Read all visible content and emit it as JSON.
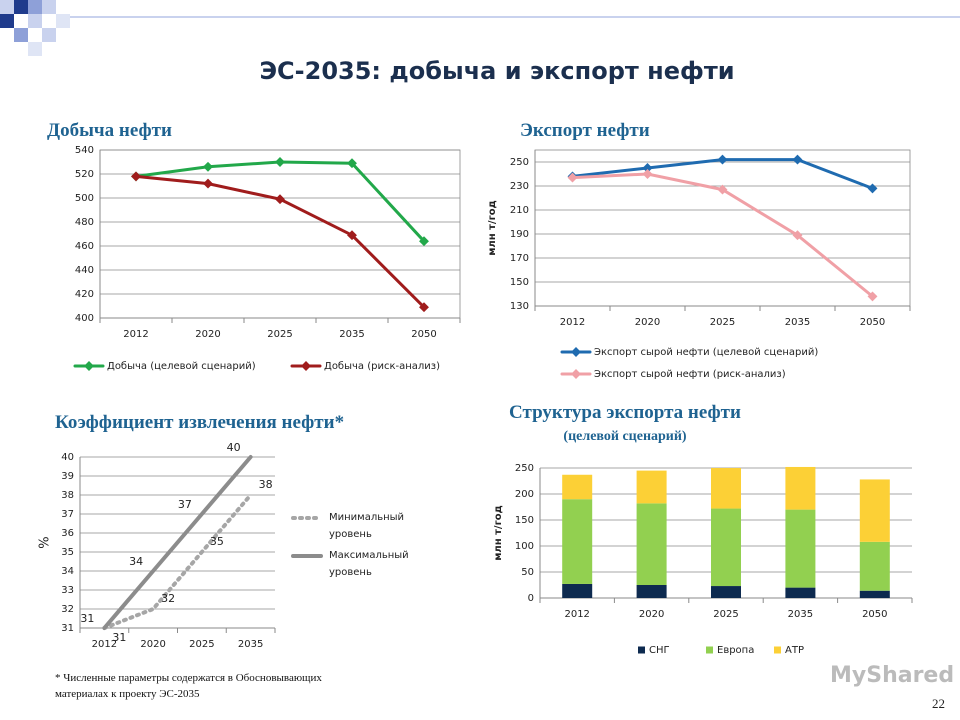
{
  "title": "ЭС-2035: добыча и экспорт нефти",
  "footnote": "* Численные параметры содержатся в Обосновывающих материалах к проекту ЭС-2035",
  "page_number": "22",
  "watermark": "MyShared",
  "chart_data": [
    {
      "type": "line",
      "title": "Добыча нефти",
      "categories": [
        "2012",
        "2020",
        "2025",
        "2035",
        "2050"
      ],
      "series": [
        {
          "name": "Добыча (целевой сценарий)",
          "color": "#22a84a",
          "values": [
            518,
            526,
            530,
            529,
            464
          ]
        },
        {
          "name": "Добыча (риск-анализ)",
          "color": "#a01c1c",
          "values": [
            518,
            512,
            499,
            469,
            409
          ]
        }
      ],
      "ylim": [
        400,
        540
      ],
      "yticks": [
        400,
        420,
        440,
        460,
        480,
        500,
        520,
        540
      ],
      "grid": true,
      "legend": "bottom"
    },
    {
      "type": "line",
      "title": "Экспорт нефти",
      "y_label": "млн т/год",
      "categories": [
        "2012",
        "2020",
        "2025",
        "2035",
        "2050"
      ],
      "series": [
        {
          "name": "Экспорт сырой нефти (целевой сценарий)",
          "color": "#1f6bb0",
          "values": [
            238,
            245,
            252,
            252,
            228
          ]
        },
        {
          "name": "Экспорт сырой нефти (риск-анализ)",
          "color": "#f0a0a6",
          "values": [
            237,
            240,
            227,
            189,
            138
          ]
        }
      ],
      "ylim": [
        130,
        260
      ],
      "yticks": [
        130,
        150,
        170,
        190,
        210,
        230,
        250
      ],
      "grid": true,
      "legend": "bottom"
    },
    {
      "type": "line",
      "title": "Коэффициент извлечения нефти*",
      "y_label": "%",
      "categories": [
        "2012",
        "2020",
        "2025",
        "2035"
      ],
      "series": [
        {
          "name": "Минимальный уровень",
          "color": "#a6a6a6",
          "line_style": "dotted",
          "values": [
            31,
            32,
            35,
            38
          ]
        },
        {
          "name": "Максимальный уровень",
          "color": "#8c8c8c",
          "line_style": "solid",
          "values": [
            31,
            34,
            37,
            40
          ]
        }
      ],
      "ylim": [
        31,
        40
      ],
      "yticks": [
        31,
        32,
        33,
        34,
        35,
        36,
        37,
        38,
        39,
        40
      ],
      "grid": true,
      "legend": "right",
      "data_labels": true
    },
    {
      "type": "bar",
      "stacked": true,
      "title": "Структура экспорта нефти",
      "subtitle": "(целевой сценарий)",
      "y_label": "млн т/год",
      "categories": [
        "2012",
        "2020",
        "2025",
        "2035",
        "2050"
      ],
      "series": [
        {
          "name": "СНГ",
          "color": "#0d2a4f",
          "values": [
            27,
            25,
            23,
            20,
            14
          ]
        },
        {
          "name": "Европа",
          "color": "#92d050",
          "values": [
            163,
            157,
            149,
            150,
            94
          ]
        },
        {
          "name": "АТР",
          "color": "#fcd036",
          "values": [
            47,
            63,
            78,
            82,
            120
          ]
        }
      ],
      "ylim": [
        0,
        250
      ],
      "yticks": [
        0,
        50,
        100,
        150,
        200,
        250
      ],
      "grid": true,
      "legend": "bottom"
    }
  ]
}
